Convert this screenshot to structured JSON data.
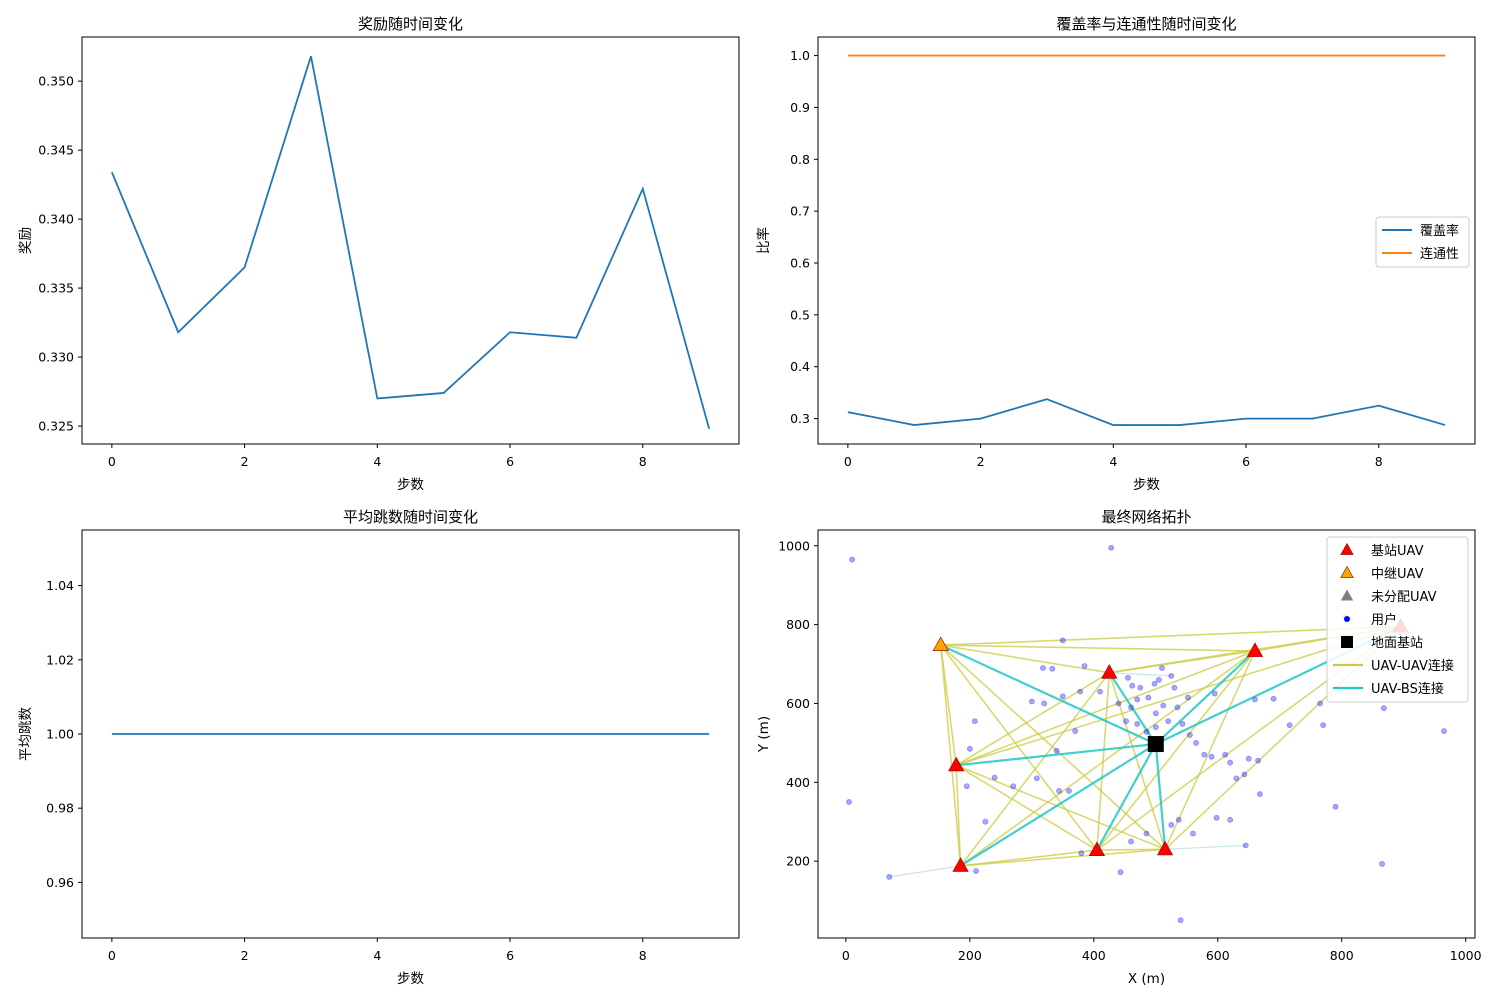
{
  "chart_data": [
    {
      "type": "line",
      "title": "奖励随时间变化",
      "xlabel": "步数",
      "ylabel": "奖励",
      "xlim": [
        -0.45,
        9.45
      ],
      "ylim": [
        0.3237,
        0.3532
      ],
      "xticks": [
        0,
        2,
        4,
        6,
        8
      ],
      "yticks": [
        0.325,
        0.33,
        0.335,
        0.34,
        0.345,
        0.35
      ],
      "ytick_labels": [
        "0.325",
        "0.330",
        "0.335",
        "0.340",
        "0.345",
        "0.350"
      ],
      "x": [
        0,
        1,
        2,
        3,
        4,
        5,
        6,
        7,
        8,
        9
      ],
      "series": [
        {
          "values": [
            0.3434,
            0.3318,
            0.3365,
            0.3518,
            0.327,
            0.3274,
            0.3318,
            0.3314,
            0.3422,
            0.3248
          ],
          "color": "#1f77b4"
        }
      ]
    },
    {
      "type": "line",
      "title": "覆盖率与连通性随时间变化",
      "xlabel": "步数",
      "ylabel": "比率",
      "xlim": [
        -0.45,
        9.45
      ],
      "ylim": [
        0.251,
        1.0358
      ],
      "xticks": [
        0,
        2,
        4,
        6,
        8
      ],
      "yticks": [
        0.3,
        0.4,
        0.5,
        0.6,
        0.7,
        0.8,
        0.9,
        1.0
      ],
      "ytick_labels": [
        "0.3",
        "0.4",
        "0.5",
        "0.6",
        "0.7",
        "0.8",
        "0.9",
        "1.0"
      ],
      "x": [
        0,
        1,
        2,
        3,
        4,
        5,
        6,
        7,
        8,
        9
      ],
      "series": [
        {
          "name": "覆盖率",
          "values": [
            0.3125,
            0.2875,
            0.3,
            0.3375,
            0.2875,
            0.2875,
            0.3,
            0.3,
            0.325,
            0.2875
          ],
          "color": "#1f77b4"
        },
        {
          "name": "连通性",
          "values": [
            1,
            1,
            1,
            1,
            1,
            1,
            1,
            1,
            1,
            1
          ],
          "color": "#ff7f0e"
        }
      ],
      "legend_position": "center-right"
    },
    {
      "type": "line",
      "title": "平均跳数随时间变化",
      "xlabel": "步数",
      "ylabel": "平均跳数",
      "xlim": [
        -0.45,
        9.45
      ],
      "ylim": [
        0.945,
        1.055
      ],
      "xticks": [
        0,
        2,
        4,
        6,
        8
      ],
      "yticks": [
        0.96,
        0.98,
        1.0,
        1.02,
        1.04
      ],
      "ytick_labels": [
        "0.96",
        "0.98",
        "1.00",
        "1.02",
        "1.04"
      ],
      "x": [
        0,
        1,
        2,
        3,
        4,
        5,
        6,
        7,
        8,
        9
      ],
      "series": [
        {
          "values": [
            1,
            1,
            1,
            1,
            1,
            1,
            1,
            1,
            1,
            1
          ],
          "color": "#1f77b4"
        }
      ]
    },
    {
      "type": "scatter",
      "title": "最终网络拓扑",
      "xlabel": "X (m)",
      "ylabel": "Y (m)",
      "xlim": [
        -45,
        1015
      ],
      "ylim": [
        5,
        1040
      ],
      "xticks": [
        0,
        200,
        400,
        600,
        800,
        1000
      ],
      "yticks": [
        200,
        400,
        600,
        800,
        1000
      ],
      "legend_position": "top-right",
      "legend": [
        "基站UAV",
        "中继UAV",
        "未分配UAV",
        "用户",
        "地面基站",
        "UAV-UAV连接",
        "UAV-BS连接"
      ],
      "colors": {
        "base_uav": "#ff0000",
        "relay_uav": "#ffa500",
        "unassigned_uav": "#808080",
        "user": "#0000ff",
        "ground_bs": "#000000",
        "uav_uav_link": "#cccc44",
        "uav_bs_link": "#22c7c7",
        "user_link": "#bfe0e0"
      },
      "ground_bs": [
        500,
        497
      ],
      "uavs": [
        {
          "x": 153,
          "y": 748,
          "role": "relay"
        },
        {
          "x": 425,
          "y": 678,
          "role": "base"
        },
        {
          "x": 660,
          "y": 733,
          "role": "base"
        },
        {
          "x": 178,
          "y": 443,
          "role": "base"
        },
        {
          "x": 185,
          "y": 188,
          "role": "base"
        },
        {
          "x": 405,
          "y": 228,
          "role": "base"
        },
        {
          "x": 515,
          "y": 230,
          "role": "base"
        },
        {
          "x": 895,
          "y": 795,
          "role": "base"
        }
      ],
      "uav_uav_links": [
        [
          0,
          1
        ],
        [
          0,
          2
        ],
        [
          0,
          3
        ],
        [
          0,
          4
        ],
        [
          0,
          5
        ],
        [
          0,
          6
        ],
        [
          0,
          7
        ],
        [
          1,
          2
        ],
        [
          1,
          3
        ],
        [
          1,
          4
        ],
        [
          1,
          5
        ],
        [
          1,
          6
        ],
        [
          1,
          7
        ],
        [
          2,
          3
        ],
        [
          2,
          4
        ],
        [
          2,
          5
        ],
        [
          2,
          6
        ],
        [
          2,
          7
        ],
        [
          3,
          4
        ],
        [
          3,
          5
        ],
        [
          3,
          6
        ],
        [
          3,
          7
        ],
        [
          4,
          5
        ],
        [
          4,
          6
        ],
        [
          5,
          6
        ],
        [
          5,
          7
        ],
        [
          6,
          7
        ]
      ],
      "uav_bs_links": [
        0,
        1,
        2,
        3,
        4,
        5,
        6,
        7
      ],
      "users": [
        [
          10,
          965
        ],
        [
          428,
          995
        ],
        [
          5,
          350
        ],
        [
          70,
          160
        ],
        [
          350,
          760
        ],
        [
          318,
          690
        ],
        [
          333,
          688
        ],
        [
          385,
          695
        ],
        [
          410,
          630
        ],
        [
          378,
          630
        ],
        [
          455,
          665
        ],
        [
          462,
          645
        ],
        [
          475,
          640
        ],
        [
          498,
          650
        ],
        [
          510,
          690
        ],
        [
          505,
          660
        ],
        [
          525,
          670
        ],
        [
          530,
          640
        ],
        [
          488,
          615
        ],
        [
          470,
          610
        ],
        [
          440,
          600
        ],
        [
          460,
          590
        ],
        [
          452,
          555
        ],
        [
          470,
          548
        ],
        [
          485,
          528
        ],
        [
          500,
          540
        ],
        [
          520,
          555
        ],
        [
          500,
          575
        ],
        [
          512,
          595
        ],
        [
          535,
          590
        ],
        [
          552,
          615
        ],
        [
          543,
          548
        ],
        [
          555,
          520
        ],
        [
          565,
          500
        ],
        [
          578,
          470
        ],
        [
          590,
          465
        ],
        [
          612,
          470
        ],
        [
          620,
          450
        ],
        [
          650,
          460
        ],
        [
          665,
          455
        ],
        [
          660,
          610
        ],
        [
          690,
          612
        ],
        [
          716,
          545
        ],
        [
          765,
          600
        ],
        [
          770,
          545
        ],
        [
          868,
          588
        ],
        [
          965,
          530
        ],
        [
          595,
          625
        ],
        [
          643,
          420
        ],
        [
          668,
          370
        ],
        [
          630,
          410
        ],
        [
          598,
          310
        ],
        [
          620,
          305
        ],
        [
          560,
          270
        ],
        [
          537,
          305
        ],
        [
          525,
          292
        ],
        [
          485,
          270
        ],
        [
          460,
          250
        ],
        [
          380,
          220
        ],
        [
          443,
          172
        ],
        [
          540,
          50
        ],
        [
          645,
          240
        ],
        [
          208,
          555
        ],
        [
          200,
          485
        ],
        [
          195,
          390
        ],
        [
          225,
          300
        ],
        [
          210,
          175
        ],
        [
          360,
          378
        ],
        [
          344,
          378
        ],
        [
          300,
          605
        ],
        [
          320,
          600
        ],
        [
          340,
          480
        ],
        [
          308,
          410
        ],
        [
          270,
          390
        ],
        [
          240,
          412
        ],
        [
          370,
          530
        ],
        [
          350,
          618
        ],
        [
          790,
          338
        ],
        [
          865,
          193
        ],
        [
          805,
          820
        ]
      ]
    }
  ]
}
